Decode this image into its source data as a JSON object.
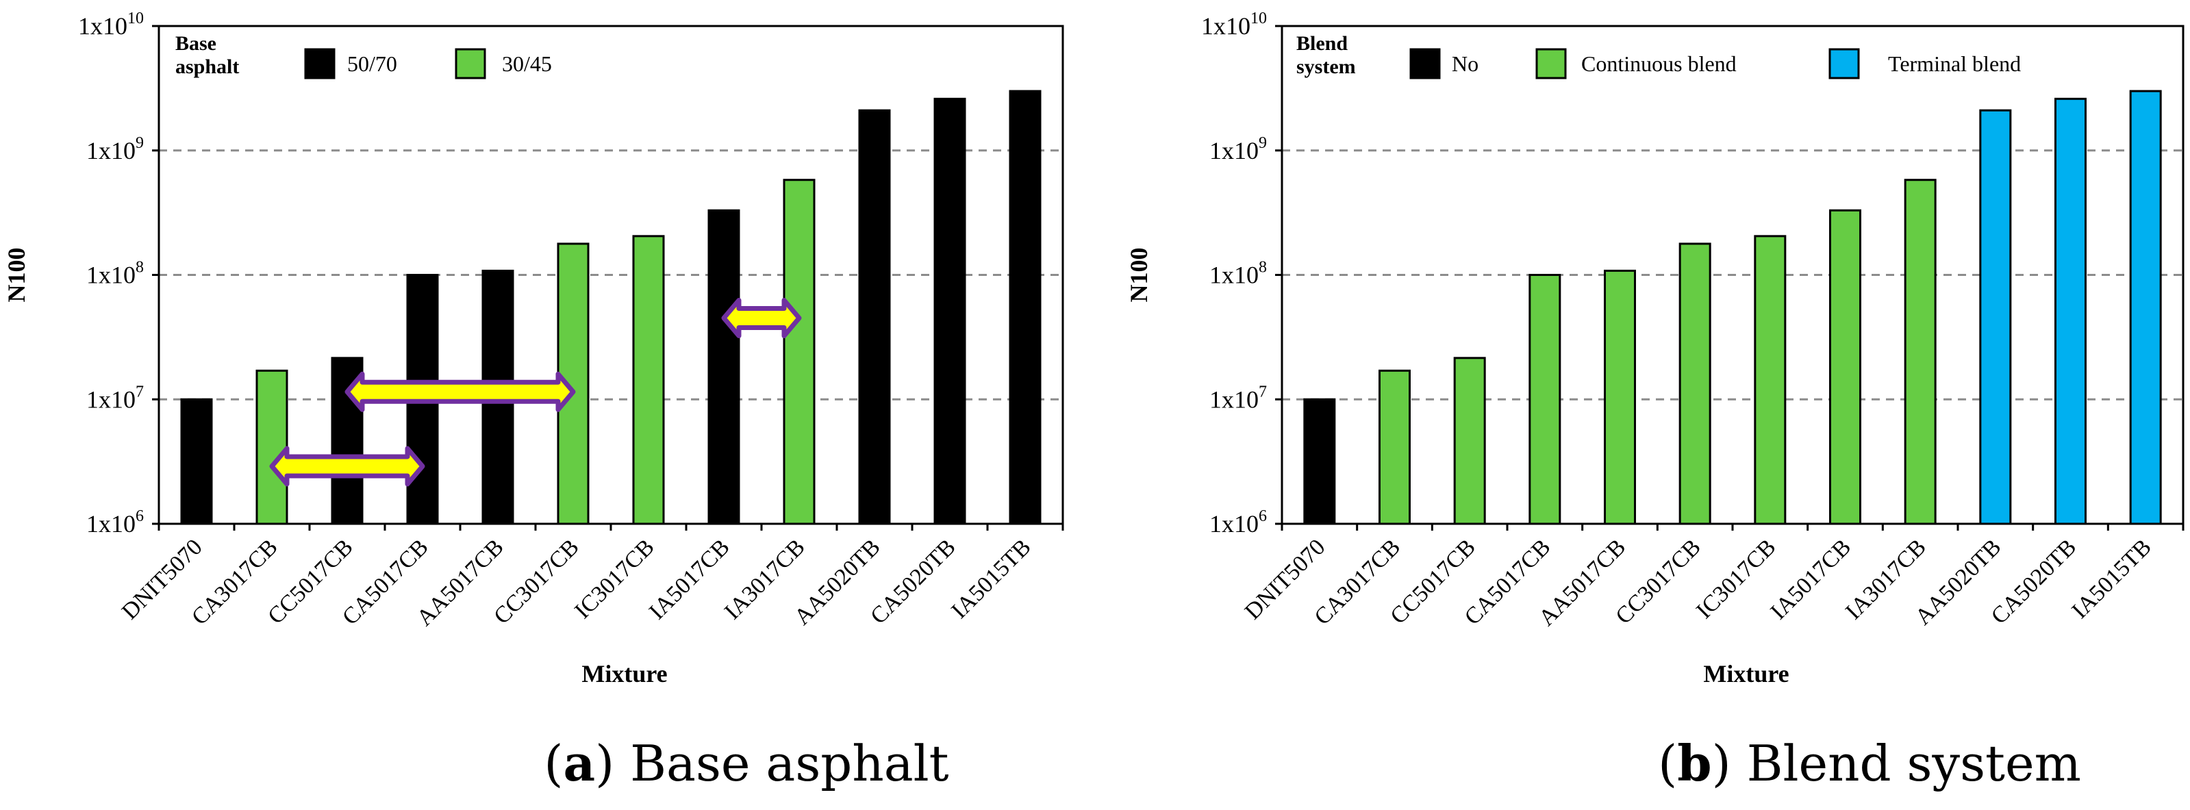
{
  "chart_data": [
    {
      "type": "bar",
      "panel": "a",
      "caption_letter": "a",
      "caption_text": "Base asphalt",
      "xlabel": "Mixture",
      "ylabel": "N100",
      "yscale": "log",
      "ylim": [
        1000000,
        10000000000
      ],
      "yticks": [
        {
          "value": 1000000,
          "base": "1x10",
          "exp": "6"
        },
        {
          "value": 10000000,
          "base": "1x10",
          "exp": "7"
        },
        {
          "value": 100000000,
          "base": "1x10",
          "exp": "8"
        },
        {
          "value": 1000000000,
          "base": "1x10",
          "exp": "9"
        },
        {
          "value": 10000000000,
          "base": "1x10",
          "exp": "10"
        }
      ],
      "grid": "horizontal dashed",
      "legend": {
        "title_line1": "Base",
        "title_line2": "asphalt",
        "entries": [
          {
            "label": "50/70",
            "color": "#000000"
          },
          {
            "label": "30/45",
            "color": "#66cc44"
          }
        ]
      },
      "categories": [
        "DNIT5070",
        "CA3017CB",
        "CC5017CB",
        "CA5017CB",
        "AA5017CB",
        "CC3017CB",
        "IC3017CB",
        "IA5017CB",
        "IA3017CB",
        "AA5020TB",
        "CA5020TB",
        "IA5015TB"
      ],
      "values": [
        10000000,
        17000000,
        21500000,
        100000000,
        108000000,
        178000000,
        205000000,
        330000000,
        580000000,
        2100000000,
        2600000000,
        3000000000
      ],
      "groups": [
        "50/70",
        "30/45",
        "50/70",
        "50/70",
        "50/70",
        "30/45",
        "30/45",
        "50/70",
        "30/45",
        "50/70",
        "50/70",
        "50/70"
      ],
      "annotations": [
        {
          "type": "double-arrow",
          "from_category": "CA3017CB",
          "to_category": "CA5017CB",
          "at_value": 2900000,
          "fill": "#ffff00",
          "stroke": "#7030a0"
        },
        {
          "type": "double-arrow",
          "from_category": "CC5017CB",
          "to_category": "CC3017CB",
          "at_value": 11500000,
          "fill": "#ffff00",
          "stroke": "#7030a0"
        },
        {
          "type": "double-arrow",
          "from_category": "IA5017CB",
          "to_category": "IA3017CB",
          "at_value": 45000000,
          "fill": "#ffff00",
          "stroke": "#7030a0"
        }
      ]
    },
    {
      "type": "bar",
      "panel": "b",
      "caption_letter": "b",
      "caption_text": "Blend system",
      "xlabel": "Mixture",
      "ylabel": "N100",
      "yscale": "log",
      "ylim": [
        1000000,
        10000000000
      ],
      "yticks": [
        {
          "value": 1000000,
          "base": "1x10",
          "exp": "6"
        },
        {
          "value": 10000000,
          "base": "1x10",
          "exp": "7"
        },
        {
          "value": 100000000,
          "base": "1x10",
          "exp": "8"
        },
        {
          "value": 1000000000,
          "base": "1x10",
          "exp": "9"
        },
        {
          "value": 10000000000,
          "base": "1x10",
          "exp": "10"
        }
      ],
      "grid": "horizontal dashed",
      "legend": {
        "title_line1": "Blend",
        "title_line2": "system",
        "entries": [
          {
            "label": "No",
            "color": "#000000"
          },
          {
            "label": "Continuous blend",
            "color": "#66cc44"
          },
          {
            "label": "Terminal blend",
            "color": "#00b0f0"
          }
        ]
      },
      "categories": [
        "DNIT5070",
        "CA3017CB",
        "CC5017CB",
        "CA5017CB",
        "AA5017CB",
        "CC3017CB",
        "IC3017CB",
        "IA5017CB",
        "IA3017CB",
        "AA5020TB",
        "CA5020TB",
        "IA5015TB"
      ],
      "values": [
        10000000,
        17000000,
        21500000,
        100000000,
        108000000,
        178000000,
        205000000,
        330000000,
        580000000,
        2100000000,
        2600000000,
        3000000000
      ],
      "groups": [
        "No",
        "Continuous blend",
        "Continuous blend",
        "Continuous blend",
        "Continuous blend",
        "Continuous blend",
        "Continuous blend",
        "Continuous blend",
        "Continuous blend",
        "Terminal blend",
        "Terminal blend",
        "Terminal blend"
      ],
      "annotations": []
    }
  ]
}
